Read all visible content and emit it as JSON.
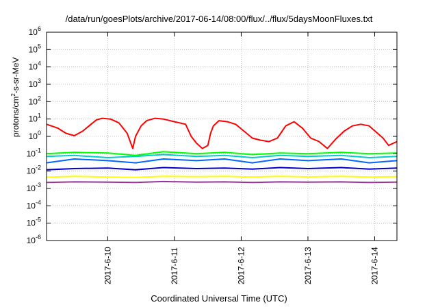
{
  "chart_data": {
    "type": "line",
    "title": "/data/run/goesPlots/archive/2017-06-14/08:00/flux/../flux/5daysMoonFluxes.txt",
    "xlabel": "Coordinated Universal Time (UTC)",
    "ylabel": {
      "prefix": "protons/cm",
      "sup": "2",
      "suffix": "-s-sr-MeV"
    },
    "yscale": "log",
    "ylim": [
      1e-06,
      1000000.0
    ],
    "xlim": [
      "2017-06-09 02:00",
      "2017-06-14 08:00"
    ],
    "grid": true,
    "x_ticks": [
      {
        "date": "2017-06-10",
        "label": "2017-6-10"
      },
      {
        "date": "2017-06-11",
        "label": "2017-6-11"
      },
      {
        "date": "2017-06-12",
        "label": "2017-6-12"
      },
      {
        "date": "2017-06-13",
        "label": "2017-6-13"
      },
      {
        "date": "2017-06-14",
        "label": "2017-6-14"
      }
    ],
    "y_ticks": [
      {
        "base": "10",
        "exp": "-6",
        "value": 1e-06
      },
      {
        "base": "10",
        "exp": "-5",
        "value": 1e-05
      },
      {
        "base": "10",
        "exp": "-4",
        "value": 0.0001
      },
      {
        "base": "10",
        "exp": "-3",
        "value": 0.001
      },
      {
        "base": "10",
        "exp": "-2",
        "value": 0.01
      },
      {
        "base": "10",
        "exp": "-1",
        "value": 0.1
      },
      {
        "base": "10",
        "exp": "0",
        "value": 1.0
      },
      {
        "base": "10",
        "exp": "1",
        "value": 10.0
      },
      {
        "base": "10",
        "exp": "2",
        "value": 100.0
      },
      {
        "base": "10",
        "exp": "3",
        "value": 1000.0
      },
      {
        "base": "10",
        "exp": "4",
        "value": 10000.0
      },
      {
        "base": "10",
        "exp": "5",
        "value": 100000.0
      },
      {
        "base": "10",
        "exp": "6",
        "value": 1000000.0
      }
    ],
    "series": [
      {
        "color": "#ff0000",
        "x": [
          "2017-06-09 02:00",
          "2017-06-09 06:00",
          "2017-06-09 09:00",
          "2017-06-09 12:00",
          "2017-06-09 15:00",
          "2017-06-09 18:00",
          "2017-06-09 20:00",
          "2017-06-09 22:00",
          "2017-06-10 01:00",
          "2017-06-10 04:00",
          "2017-06-10 07:00",
          "2017-06-10 09:00",
          "2017-06-10 10:00",
          "2017-06-10 12:00",
          "2017-06-10 14:00",
          "2017-06-10 17:00",
          "2017-06-10 20:00",
          "2017-06-11 00:00",
          "2017-06-11 04:00",
          "2017-06-11 06:00",
          "2017-06-11 08:00",
          "2017-06-11 10:00",
          "2017-06-11 12:00",
          "2017-06-11 13:00",
          "2017-06-11 14:00",
          "2017-06-11 16:00",
          "2017-06-11 19:00",
          "2017-06-11 22:00",
          "2017-06-12 01:00",
          "2017-06-12 04:00",
          "2017-06-12 07:00",
          "2017-06-12 10:00",
          "2017-06-12 13:00",
          "2017-06-12 16:00",
          "2017-06-12 19:00",
          "2017-06-12 22:00",
          "2017-06-13 01:00",
          "2017-06-13 04:00",
          "2017-06-13 07:00",
          "2017-06-13 10:00",
          "2017-06-13 13:00",
          "2017-06-13 16:00",
          "2017-06-13 19:00",
          "2017-06-13 22:00",
          "2017-06-14 01:00",
          "2017-06-14 03:00",
          "2017-06-14 05:00",
          "2017-06-14 08:00"
        ],
        "y": [
          5,
          3,
          1.5,
          1.1,
          2,
          5,
          9,
          11,
          10,
          6,
          1.5,
          0.2,
          1,
          4,
          8,
          11,
          10,
          7,
          5,
          1,
          0.4,
          0.2,
          0.3,
          1.5,
          4,
          8,
          7,
          5,
          2,
          0.8,
          0.6,
          0.5,
          0.8,
          4,
          7,
          3,
          0.8,
          0.5,
          0.2,
          0.7,
          2,
          4,
          5,
          4,
          1.5,
          0.8,
          0.3,
          0.5
        ]
      },
      {
        "color": "#00ff00",
        "x": [
          "2017-06-09 02:00",
          "2017-06-09 12:00",
          "2017-06-10 00:00",
          "2017-06-10 10:00",
          "2017-06-10 20:00",
          "2017-06-11 08:00",
          "2017-06-11 18:00",
          "2017-06-12 04:00",
          "2017-06-12 14:00",
          "2017-06-13 00:00",
          "2017-06-13 12:00",
          "2017-06-13 22:00",
          "2017-06-14 08:00"
        ],
        "y": [
          0.1,
          0.12,
          0.11,
          0.08,
          0.13,
          0.1,
          0.12,
          0.09,
          0.11,
          0.1,
          0.12,
          0.1,
          0.11
        ]
      },
      {
        "color": "#00cccc",
        "x": [
          "2017-06-09 02:00",
          "2017-06-09 12:00",
          "2017-06-10 00:00",
          "2017-06-10 10:00",
          "2017-06-10 20:00",
          "2017-06-11 08:00",
          "2017-06-11 18:00",
          "2017-06-12 04:00",
          "2017-06-12 14:00",
          "2017-06-13 00:00",
          "2017-06-13 12:00",
          "2017-06-13 22:00",
          "2017-06-14 08:00"
        ],
        "y": [
          0.07,
          0.08,
          0.06,
          0.07,
          0.09,
          0.07,
          0.08,
          0.06,
          0.08,
          0.07,
          0.08,
          0.06,
          0.07
        ]
      },
      {
        "color": "#0066ff",
        "x": [
          "2017-06-09 02:00",
          "2017-06-09 12:00",
          "2017-06-10 00:00",
          "2017-06-10 10:00",
          "2017-06-10 20:00",
          "2017-06-11 08:00",
          "2017-06-11 18:00",
          "2017-06-12 04:00",
          "2017-06-12 14:00",
          "2017-06-13 00:00",
          "2017-06-13 12:00",
          "2017-06-13 22:00",
          "2017-06-14 08:00"
        ],
        "y": [
          0.03,
          0.05,
          0.04,
          0.03,
          0.05,
          0.04,
          0.05,
          0.03,
          0.05,
          0.04,
          0.05,
          0.03,
          0.04
        ]
      },
      {
        "color": "#0000cc",
        "x": [
          "2017-06-09 02:00",
          "2017-06-09 12:00",
          "2017-06-10 00:00",
          "2017-06-10 10:00",
          "2017-06-10 20:00",
          "2017-06-11 08:00",
          "2017-06-11 18:00",
          "2017-06-12 04:00",
          "2017-06-12 14:00",
          "2017-06-13 00:00",
          "2017-06-13 12:00",
          "2017-06-13 22:00",
          "2017-06-14 08:00"
        ],
        "y": [
          0.012,
          0.014,
          0.015,
          0.012,
          0.016,
          0.014,
          0.015,
          0.013,
          0.016,
          0.014,
          0.016,
          0.013,
          0.015
        ]
      },
      {
        "color": "#ffff00",
        "x": [
          "2017-06-09 02:00",
          "2017-06-09 12:00",
          "2017-06-10 00:00",
          "2017-06-10 10:00",
          "2017-06-10 20:00",
          "2017-06-11 08:00",
          "2017-06-11 18:00",
          "2017-06-12 04:00",
          "2017-06-12 14:00",
          "2017-06-13 00:00",
          "2017-06-13 12:00",
          "2017-06-13 22:00",
          "2017-06-14 08:00"
        ],
        "y": [
          0.0045,
          0.005,
          0.0046,
          0.0044,
          0.005,
          0.0048,
          0.005,
          0.0046,
          0.005,
          0.0047,
          0.005,
          0.0046,
          0.0048
        ]
      },
      {
        "color": "#993399",
        "x": [
          "2017-06-09 02:00",
          "2017-06-09 12:00",
          "2017-06-10 00:00",
          "2017-06-10 10:00",
          "2017-06-10 20:00",
          "2017-06-11 08:00",
          "2017-06-11 18:00",
          "2017-06-12 04:00",
          "2017-06-12 14:00",
          "2017-06-13 00:00",
          "2017-06-13 12:00",
          "2017-06-13 22:00",
          "2017-06-14 08:00"
        ],
        "y": [
          0.0022,
          0.0024,
          0.0023,
          0.0022,
          0.0025,
          0.0023,
          0.0024,
          0.0022,
          0.0024,
          0.0023,
          0.0024,
          0.0022,
          0.0023
        ]
      }
    ]
  }
}
